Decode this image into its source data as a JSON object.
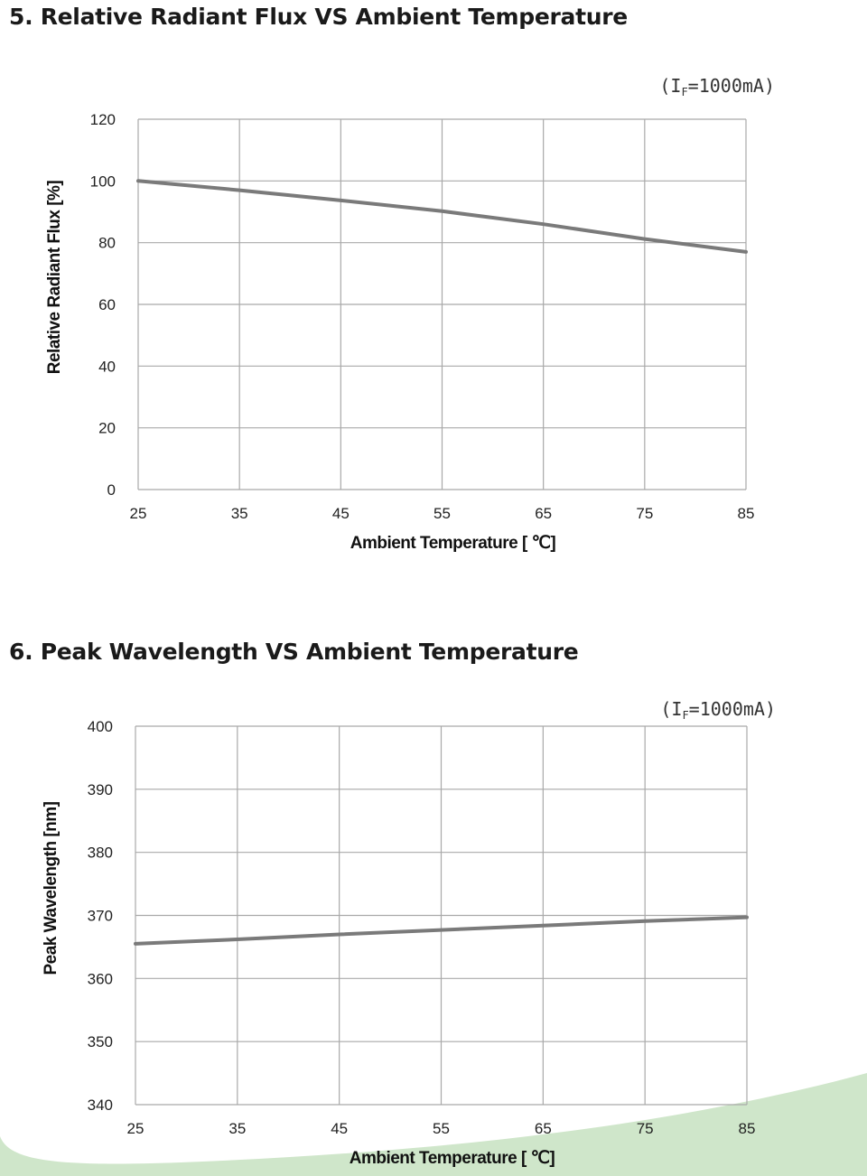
{
  "sections": [
    {
      "title": "5. Relative Radiant Flux  VS  Ambient Temperature",
      "condition": "(I₅=1000mA)"
    },
    {
      "title": "6. Peak Wavelength VS  Ambient Temperature",
      "condition": "(I₅=1000mA)"
    }
  ],
  "colors": {
    "line": "#7a7a7a",
    "grid": "#a9a9a9",
    "swoosh": "#c9e3c4"
  },
  "chart_data": [
    {
      "type": "line",
      "title": "5. Relative Radiant Flux  VS  Ambient Temperature",
      "annotation": "(IF=1000mA)",
      "xlabel": "Ambient Temperature [ ℃]",
      "ylabel": "Relative Radiant Flux [%]",
      "xlim": [
        25,
        85
      ],
      "ylim": [
        0,
        120
      ],
      "xticks": [
        25,
        35,
        45,
        55,
        65,
        75,
        85
      ],
      "yticks": [
        0,
        20,
        40,
        60,
        80,
        100,
        120
      ],
      "grid": true,
      "x": [
        25,
        35,
        45,
        55,
        65,
        75,
        85
      ],
      "series": [
        {
          "values": [
            100,
            97,
            93.7,
            90.2,
            86,
            81.2,
            77
          ]
        }
      ]
    },
    {
      "type": "line",
      "title": "6. Peak Wavelength VS  Ambient Temperature",
      "annotation": "(IF=1000mA)",
      "xlabel": "Ambient Temperature [ ℃]",
      "ylabel": "Peak Wavelength [nm]",
      "xlim": [
        25,
        85
      ],
      "ylim": [
        340,
        400
      ],
      "xticks": [
        25,
        35,
        45,
        55,
        65,
        75,
        85
      ],
      "yticks": [
        340,
        350,
        360,
        370,
        380,
        390,
        400
      ],
      "grid": true,
      "x": [
        25,
        35,
        45,
        55,
        65,
        75,
        85
      ],
      "series": [
        {
          "values": [
            365.5,
            366.2,
            367,
            367.7,
            368.4,
            369.1,
            369.7
          ]
        }
      ]
    }
  ]
}
